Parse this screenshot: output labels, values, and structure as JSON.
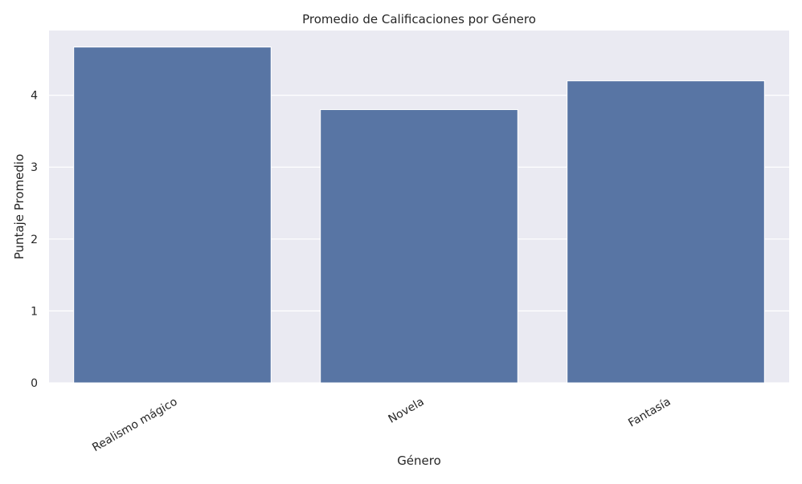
{
  "chart_data": {
    "type": "bar",
    "title": "Promedio de Calificaciones por Género",
    "xlabel": "Género",
    "ylabel": "Puntaje Promedio",
    "categories": [
      "Realismo mágico",
      "Novela",
      "Fantasía"
    ],
    "values": [
      4.67,
      3.8,
      4.2
    ],
    "ylim": [
      0,
      4.9
    ],
    "yticks": [
      0,
      1,
      2,
      3,
      4
    ],
    "grid": true,
    "colors": {
      "bar": "#5875a4",
      "bar_edge": "#ffffff",
      "plot_background": "#eaeaf2",
      "grid": "#ffffff",
      "text": "#262626"
    }
  }
}
